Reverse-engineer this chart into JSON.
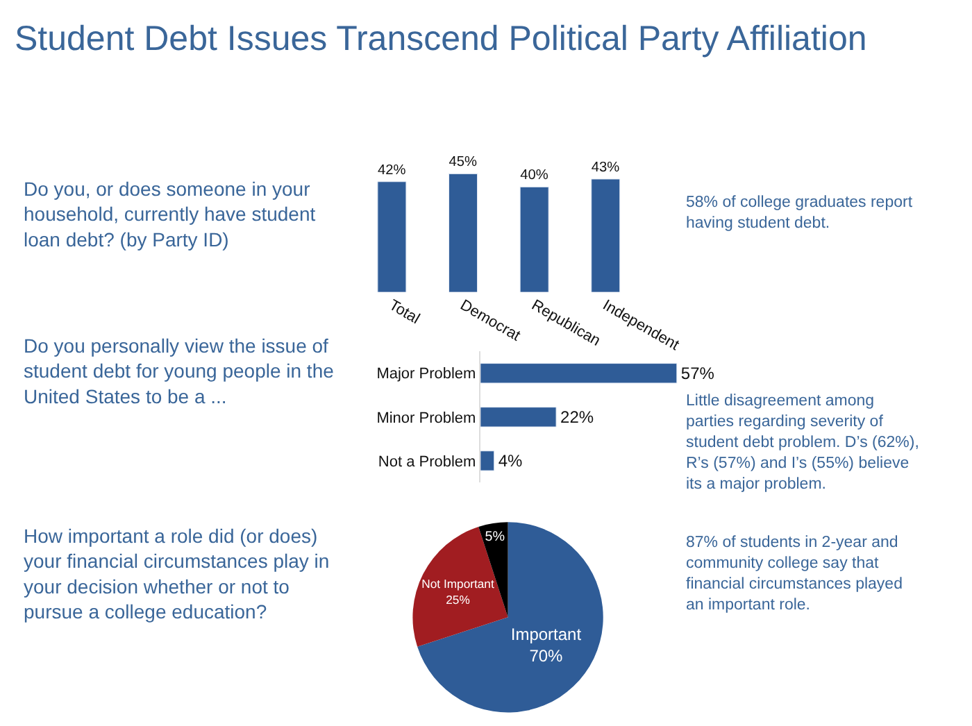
{
  "chart_data": [
    {
      "type": "bar",
      "title": "Student Debt Issues Transcend Political Party Affiliation",
      "subtitle": "Do you, or does someone in your household, currently have student loan debt? (by Party ID)",
      "categories": [
        "Total",
        "Democrat",
        "Republican",
        "Independent"
      ],
      "values": [
        42,
        45,
        40,
        43
      ],
      "value_labels": [
        "42%",
        "45%",
        "40%",
        "43%"
      ],
      "color": "#2f5c97",
      "tick_labels": "x",
      "annotations": [
        "58% of college graduates report having student debt."
      ]
    },
    {
      "type": "bar",
      "orientation": "horizontal",
      "subtitle": "Do you personally view the issue of student debt for young people in the United States to be a ...",
      "categories": [
        "Major Problem",
        "Minor Problem",
        "Not a Problem"
      ],
      "values": [
        57,
        22,
        4
      ],
      "value_labels": [
        "57%",
        "22%",
        "4%"
      ],
      "color": "#2f5c97",
      "tick_labels": "y",
      "annotations": [
        "Little disagreement among parties regarding severity of student debt problem. D’s (62%), R’s (57%) and I’s (55%) believe its a major problem."
      ]
    },
    {
      "type": "pie",
      "subtitle": "How important a role did (or does) your financial circumstances play in your decision whether or not to pursue a college education?",
      "categories": [
        "Important",
        "Not Important",
        null
      ],
      "values": [
        70,
        25,
        5
      ],
      "value_labels": [
        "70%",
        "25%",
        "5%"
      ],
      "colors": [
        "#2f5c97",
        "#a11d21",
        "#000000"
      ],
      "annotations": [
        "87% of students in 2-year and community college say that financial circumstances played an important role."
      ]
    }
  ]
}
